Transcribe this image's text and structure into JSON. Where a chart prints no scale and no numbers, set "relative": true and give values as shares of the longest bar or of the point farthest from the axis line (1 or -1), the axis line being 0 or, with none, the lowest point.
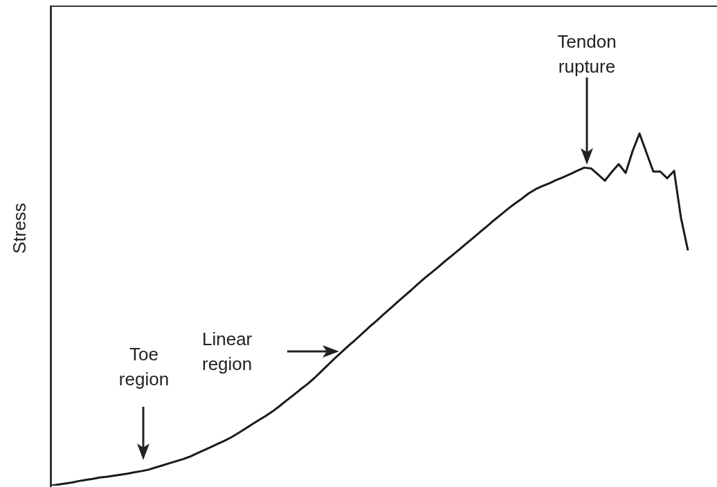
{
  "chart_data": {
    "type": "line",
    "ylabel": "Stress",
    "relative": true,
    "marker": "none",
    "line_style": "solid",
    "annotations": [
      "Tendon rupture",
      "Linear region",
      "Toe region"
    ],
    "categories": [
      null,
      null,
      null,
      null,
      null,
      null,
      null,
      null,
      null,
      null,
      null,
      null,
      null,
      null,
      null,
      null,
      null,
      null,
      null,
      null,
      null,
      null,
      null,
      null,
      null,
      null,
      null,
      null,
      null,
      null,
      null,
      null,
      null,
      null,
      null,
      null,
      null,
      null,
      null,
      null,
      null,
      null,
      null,
      null,
      null,
      null,
      null,
      null,
      null,
      null,
      null,
      null,
      null,
      null,
      null,
      null,
      null,
      null,
      null,
      null,
      null,
      null,
      null,
      null,
      null,
      null,
      null,
      null,
      null,
      null,
      null,
      null,
      null,
      null,
      null,
      null,
      null,
      null,
      null,
      null,
      null,
      null,
      null,
      null,
      null,
      null,
      null,
      null,
      null,
      null,
      null,
      null,
      null
    ],
    "series": [
      {
        "color": "#1a1a1a",
        "values": [
          0,
          0.003,
          0.006,
          0.009,
          0.013,
          0.016,
          0.019,
          0.023,
          0.025,
          0.028,
          0.031,
          0.034,
          0.038,
          0.041,
          0.045,
          0.051,
          0.057,
          0.063,
          0.069,
          0.075,
          0.082,
          0.091,
          0.1,
          0.109,
          0.118,
          0.127,
          0.137,
          0.149,
          0.161,
          0.174,
          0.186,
          0.198,
          0.211,
          0.226,
          0.242,
          0.257,
          0.273,
          0.288,
          0.305,
          0.324,
          0.343,
          0.362,
          0.38,
          0.398,
          0.415,
          0.433,
          0.451,
          0.468,
          0.486,
          0.503,
          0.521,
          0.538,
          0.555,
          0.573,
          0.59,
          0.606,
          0.622,
          0.639,
          0.655,
          0.671,
          0.688,
          0.704,
          0.721,
          0.737,
          0.754,
          0.77,
          0.786,
          0.801,
          0.815,
          0.83,
          0.842,
          0.851,
          0.859,
          0.868,
          0.876,
          0.885,
          0.894,
          0.903,
          0.901,
          0.884,
          0.866,
          0.891,
          0.913,
          0.888,
          0.95,
          1,
          0.946,
          0.892,
          0.892,
          0.873,
          0.894,
          0.76,
          0.668
        ]
      }
    ]
  }
}
